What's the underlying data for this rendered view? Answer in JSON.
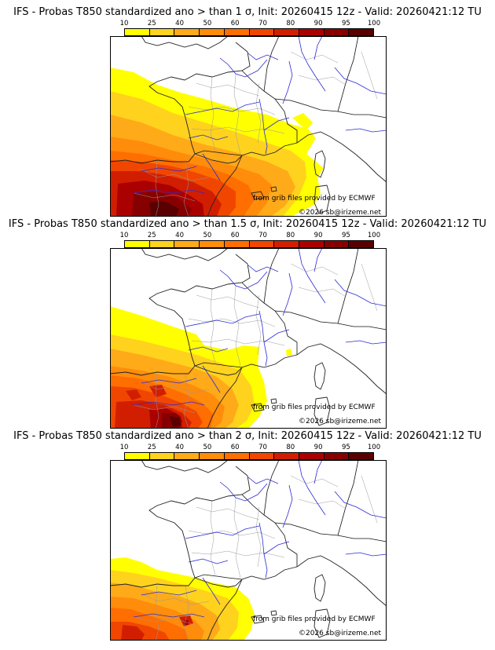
{
  "colorbar": {
    "labels": [
      "10",
      "25",
      "40",
      "50",
      "60",
      "70",
      "80",
      "90",
      "95",
      "100"
    ],
    "colors": [
      "#ffff00",
      "#ffd21e",
      "#ffaa19",
      "#ff8c0a",
      "#ff6e00",
      "#f04600",
      "#d21e00",
      "#aa0000",
      "#870000",
      "#5a0000"
    ]
  },
  "panels": [
    {
      "title": "IFS - Probas T850  standardized ano > than 1 σ, Init: 20260415 12z - Valid: 20260421:12 TU",
      "credit_source": "from grib files provided by ECMWF",
      "credit_copyright": "©2026 sb@irizeme.net"
    },
    {
      "title": "IFS - Probas T850  standardized ano > than 1.5 σ, Init: 20260415 12z - Valid: 20260421:12 TU",
      "credit_source": "from grib files provided by ECMWF",
      "credit_copyright": "©2026 sb@irizeme.net"
    },
    {
      "title": "IFS - Probas T850  standardized ano > than 2 σ, Init: 20260415 12z - Valid: 20260421:12 TU",
      "credit_source": "from grib files provided by ECMWF",
      "credit_copyright": "©2026 sb@irizeme.net"
    }
  ]
}
